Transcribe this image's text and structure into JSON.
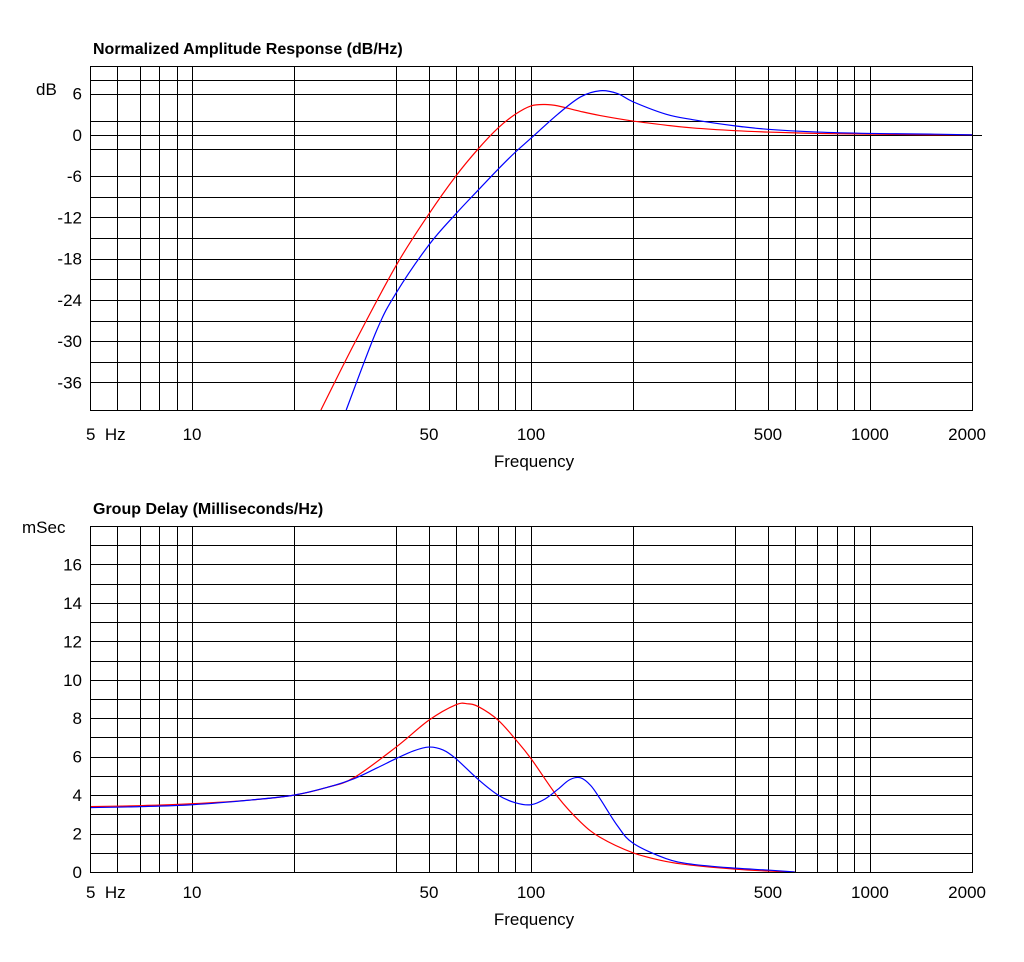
{
  "chart_data": [
    {
      "type": "line",
      "title": "Normalized Amplitude Response (dB/Hz)",
      "ylabel": "dB",
      "xlabel": "Frequency",
      "xscale": "log",
      "xlim": [
        5,
        2000
      ],
      "ylim": [
        -40,
        10
      ],
      "grid": true,
      "xtick_labels": [
        {
          "value": 5,
          "label": "5  Hz"
        },
        {
          "value": 10,
          "label": "10"
        },
        {
          "value": 50,
          "label": "50"
        },
        {
          "value": 100,
          "label": "100"
        },
        {
          "value": 500,
          "label": "500"
        },
        {
          "value": 1000,
          "label": "1000"
        },
        {
          "value": 2000,
          "label": "2000"
        }
      ],
      "xgrid": [
        6,
        7,
        8,
        9,
        10,
        20,
        40,
        50,
        60,
        70,
        80,
        90,
        100,
        200,
        400,
        500,
        600,
        700,
        800,
        900,
        1000,
        2000
      ],
      "ytick_labels": [
        6,
        0,
        -6,
        -12,
        -18,
        -24,
        -30,
        -36
      ],
      "ygrid": [
        8,
        6,
        2,
        0,
        -2,
        -6,
        -9,
        -12,
        -15,
        -18,
        -21,
        -24,
        -27,
        -30,
        -33,
        -36
      ],
      "series": [
        {
          "color": "#ff0000",
          "x": [
            24,
            30,
            40,
            50,
            60,
            70,
            80,
            90,
            100,
            110,
            120,
            140,
            160,
            200,
            250,
            300,
            400,
            500,
            700,
            1000,
            1500,
            2000
          ],
          "y": [
            -40,
            -30.5,
            -19,
            -11.5,
            -6,
            -2,
            1,
            3,
            4.2,
            4.4,
            4.2,
            3.4,
            2.8,
            2,
            1.4,
            1,
            0.6,
            0.4,
            0.2,
            0.1,
            0,
            0
          ]
        },
        {
          "color": "#0000ff",
          "x": [
            28.5,
            35,
            40,
            50,
            60,
            70,
            80,
            90,
            100,
            120,
            140,
            160,
            180,
            200,
            250,
            300,
            400,
            500,
            700,
            1000,
            1500,
            2000
          ],
          "y": [
            -40,
            -28.5,
            -23,
            -16,
            -11.5,
            -8,
            -5,
            -2.5,
            -0.5,
            3,
            5.5,
            6.4,
            6,
            4.8,
            3,
            2.2,
            1.3,
            0.8,
            0.4,
            0.2,
            0.1,
            0
          ]
        }
      ]
    },
    {
      "type": "line",
      "title": "Group Delay (Milliseconds/Hz)",
      "ylabel": "mSec",
      "xlabel": "Frequency",
      "xscale": "log",
      "xlim": [
        5,
        2000
      ],
      "ylim": [
        0,
        18
      ],
      "grid": true,
      "xtick_labels": [
        {
          "value": 5,
          "label": "5  Hz"
        },
        {
          "value": 10,
          "label": "10"
        },
        {
          "value": 50,
          "label": "50"
        },
        {
          "value": 100,
          "label": "100"
        },
        {
          "value": 500,
          "label": "500"
        },
        {
          "value": 1000,
          "label": "1000"
        },
        {
          "value": 2000,
          "label": "2000"
        }
      ],
      "xgrid": [
        6,
        7,
        8,
        9,
        10,
        20,
        40,
        50,
        60,
        70,
        80,
        90,
        100,
        200,
        400,
        500,
        600,
        700,
        800,
        900,
        1000,
        2000
      ],
      "ytick_labels": [
        16,
        14,
        12,
        10,
        8,
        6,
        4,
        2,
        0
      ],
      "ygrid": [
        17,
        16,
        15,
        14,
        13,
        12,
        11,
        10,
        9,
        8,
        7,
        6,
        5,
        4,
        3,
        2,
        1
      ],
      "series": [
        {
          "color": "#ff0000",
          "x": [
            5,
            7,
            10,
            15,
            20,
            25,
            30,
            40,
            50,
            60,
            65,
            70,
            80,
            90,
            100,
            120,
            140,
            160,
            200,
            250,
            300,
            400,
            500,
            600
          ],
          "y": [
            3.4,
            3.45,
            3.55,
            3.75,
            4.0,
            4.4,
            4.9,
            6.5,
            7.9,
            8.7,
            8.75,
            8.6,
            7.9,
            6.9,
            5.9,
            3.9,
            2.6,
            1.8,
            1.0,
            0.55,
            0.35,
            0.15,
            0.05,
            0
          ]
        },
        {
          "color": "#0000ff",
          "x": [
            5,
            7,
            10,
            15,
            20,
            25,
            30,
            35,
            40,
            45,
            50,
            55,
            60,
            70,
            80,
            90,
            100,
            110,
            120,
            130,
            140,
            150,
            160,
            180,
            200,
            250,
            300,
            400,
            500,
            600
          ],
          "y": [
            3.35,
            3.4,
            3.5,
            3.75,
            4.0,
            4.4,
            4.85,
            5.4,
            5.9,
            6.3,
            6.5,
            6.35,
            5.9,
            4.8,
            4.0,
            3.6,
            3.5,
            3.8,
            4.3,
            4.8,
            4.9,
            4.5,
            3.8,
            2.4,
            1.5,
            0.7,
            0.4,
            0.2,
            0.1,
            0
          ]
        }
      ]
    }
  ]
}
